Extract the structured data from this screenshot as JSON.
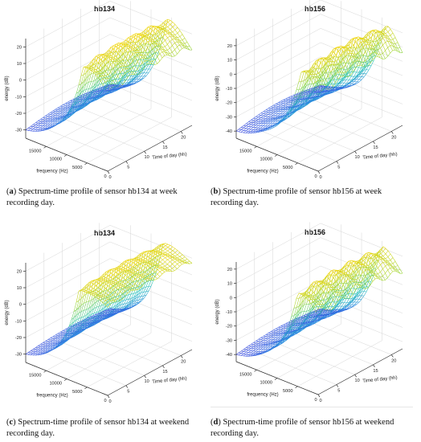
{
  "chart_data": [
    {
      "type": "surface",
      "panel": "a",
      "title": "hb134",
      "caption_label": "a",
      "caption_text": "Spectrum-time profile of sensor hb134 at week recording day.",
      "xlabel": "Time of day (hh)",
      "ylabel": "frequency (Hz)",
      "zlabel": "energy (dB)",
      "xticks": [
        0,
        5,
        10,
        15,
        20
      ],
      "yticks": [
        5000,
        10000,
        15000
      ],
      "zticks": [
        -30,
        -20,
        -10,
        0,
        10,
        20
      ],
      "xlim": [
        0,
        23
      ],
      "ylim": [
        0,
        20000
      ],
      "zlim": [
        -35,
        25
      ],
      "profile": {
        "low_freq_db": 12,
        "peak_db": 22,
        "drop_freq": 6000,
        "high_freq_db": -30,
        "day_boost": 3,
        "ripple": 1.5
      },
      "colormap": [
        "#3f2de0",
        "#2f8ee0",
        "#21c2b8",
        "#8fd43a",
        "#f5d400"
      ]
    },
    {
      "type": "surface",
      "panel": "b",
      "title": "hb156",
      "caption_label": "b",
      "caption_text": "Spectrum-time profile of sensor hb156 at week recording day.",
      "xlabel": "Time of day (hh)",
      "ylabel": "frequency (Hz)",
      "zlabel": "energy (dB)",
      "xticks": [
        0,
        5,
        10,
        15,
        20
      ],
      "yticks": [
        5000,
        10000,
        15000
      ],
      "zticks": [
        -40,
        -30,
        -20,
        -10,
        0,
        10,
        20
      ],
      "xlim": [
        0,
        23
      ],
      "ylim": [
        0,
        20000
      ],
      "zlim": [
        -45,
        25
      ],
      "profile": {
        "low_freq_db": 8,
        "peak_db": 20,
        "drop_freq": 4000,
        "high_freq_db": -40,
        "day_boost": 4,
        "ripple": 2
      },
      "colormap": [
        "#3f2de0",
        "#2f8ee0",
        "#21c2b8",
        "#8fd43a",
        "#f5d400"
      ]
    },
    {
      "type": "surface",
      "panel": "c",
      "title": "hb134",
      "caption_label": "c",
      "caption_text": "Spectrum-time profile of sensor hb134 at weekend recording day.",
      "xlabel": "Time of day (hh)",
      "ylabel": "frequency (Hz)",
      "zlabel": "energy (dB)",
      "xticks": [
        0,
        5,
        10,
        15,
        20
      ],
      "yticks": [
        5000,
        10000,
        15000
      ],
      "zticks": [
        -30,
        -20,
        -10,
        0,
        10,
        20
      ],
      "xlim": [
        0,
        23
      ],
      "ylim": [
        0,
        20000
      ],
      "zlim": [
        -35,
        25
      ],
      "profile": {
        "low_freq_db": 18,
        "peak_db": 22,
        "drop_freq": 7000,
        "high_freq_db": -30,
        "day_boost": 2,
        "ripple": 1
      },
      "colormap": [
        "#3f2de0",
        "#2f8ee0",
        "#21c2b8",
        "#8fd43a",
        "#f5d400"
      ]
    },
    {
      "type": "surface",
      "panel": "d",
      "title": "hb156",
      "caption_label": "d",
      "caption_text": "Spectrum-time profile of sensor hb156 at weekend recording day.",
      "xlabel": "Time of day (hh)",
      "ylabel": "frequency (Hz)",
      "zlabel": "energy (dB)",
      "xticks": [
        0,
        5,
        10,
        15,
        20
      ],
      "yticks": [
        5000,
        10000,
        15000
      ],
      "zticks": [
        -40,
        -30,
        -20,
        -10,
        0,
        10,
        20
      ],
      "xlim": [
        0,
        23
      ],
      "ylim": [
        0,
        20000
      ],
      "zlim": [
        -45,
        25
      ],
      "profile": {
        "low_freq_db": 10,
        "peak_db": 20,
        "drop_freq": 5000,
        "high_freq_db": -40,
        "day_boost": 3,
        "ripple": 2
      },
      "colormap": [
        "#3f2de0",
        "#2f8ee0",
        "#21c2b8",
        "#8fd43a",
        "#f5d400"
      ]
    }
  ]
}
